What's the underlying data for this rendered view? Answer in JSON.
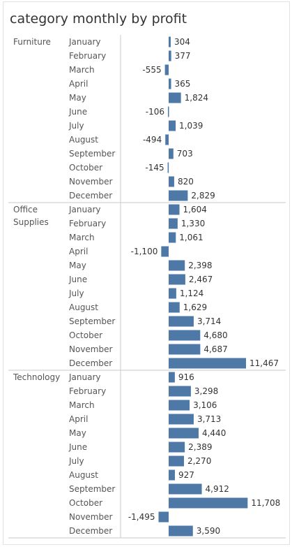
{
  "title": "category monthly by profit",
  "colors": {
    "bar": "#4e79a7",
    "divider": "#c8c8c8",
    "text": "#555555",
    "value_text": "#333333"
  },
  "chart_data": {
    "type": "bar",
    "orientation": "horizontal",
    "title": "category monthly by profit",
    "xlabel": "",
    "ylabel": "",
    "grid": false,
    "xlim": [
      -1500,
      11708
    ],
    "groups": [
      {
        "name": "Furniture",
        "label_lines": [
          "Furniture"
        ],
        "categories": [
          "January",
          "February",
          "March",
          "April",
          "May",
          "June",
          "July",
          "August",
          "September",
          "October",
          "November",
          "December"
        ],
        "values": [
          304,
          377,
          -555,
          365,
          1824,
          -106,
          1039,
          -494,
          703,
          -145,
          820,
          2829
        ],
        "labels": [
          "304",
          "377",
          "-555",
          "365",
          "1,824",
          "-106",
          "1,039",
          "-494",
          "703",
          "-145",
          "820",
          "2,829"
        ]
      },
      {
        "name": "Office Supplies",
        "label_lines": [
          "Office",
          "Supplies"
        ],
        "categories": [
          "January",
          "February",
          "March",
          "April",
          "May",
          "June",
          "July",
          "August",
          "September",
          "October",
          "November",
          "December"
        ],
        "values": [
          1604,
          1330,
          1061,
          -1100,
          2398,
          2467,
          1124,
          1629,
          3714,
          4680,
          4687,
          11467
        ],
        "labels": [
          "1,604",
          "1,330",
          "1,061",
          "-1,100",
          "2,398",
          "2,467",
          "1,124",
          "1,629",
          "3,714",
          "4,680",
          "4,687",
          "11,467"
        ]
      },
      {
        "name": "Technology",
        "label_lines": [
          "Technology"
        ],
        "categories": [
          "January",
          "February",
          "March",
          "April",
          "May",
          "June",
          "July",
          "August",
          "September",
          "October",
          "November",
          "December"
        ],
        "values": [
          916,
          3298,
          3106,
          3713,
          4440,
          2389,
          2270,
          927,
          4912,
          11708,
          -1495,
          3590
        ],
        "labels": [
          "916",
          "3,298",
          "3,106",
          "3,713",
          "4,440",
          "2,389",
          "2,270",
          "927",
          "4,912",
          "11,708",
          "-1,495",
          "3,590"
        ]
      }
    ]
  }
}
